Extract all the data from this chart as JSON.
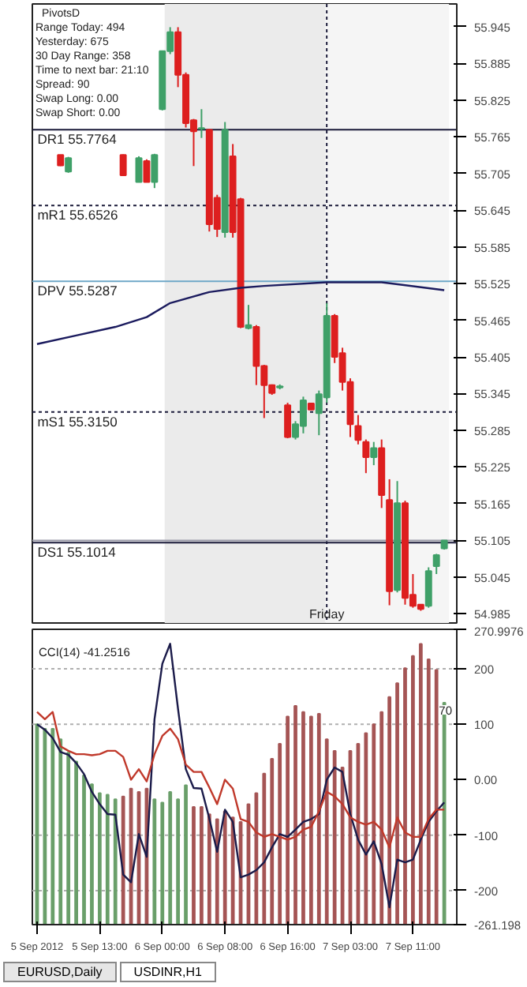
{
  "chart_data": [
    {
      "type": "candlestick",
      "categories": [
        null,
        null,
        null,
        null,
        null,
        null,
        null,
        null,
        null,
        null,
        null,
        null,
        null,
        null,
        null,
        null,
        null,
        null,
        null,
        null,
        null,
        null,
        null,
        null,
        null,
        null,
        null,
        null,
        null,
        null,
        null,
        null,
        null,
        null,
        null,
        null,
        null,
        null,
        null,
        null,
        null,
        null,
        null,
        null,
        null,
        null,
        null,
        null,
        null,
        null,
        null,
        null,
        null
      ],
      "ohlc": [
        null,
        null,
        null,
        [
          55.735,
          55.735,
          55.717,
          55.718
        ],
        [
          55.708,
          55.732,
          55.706,
          55.73
        ],
        null,
        null,
        null,
        null,
        null,
        null,
        [
          55.735,
          55.736,
          55.702,
          55.702
        ],
        null,
        [
          55.691,
          55.733,
          55.691,
          55.73
        ],
        [
          55.725,
          55.728,
          55.691,
          55.691
        ],
        [
          55.691,
          55.737,
          55.681,
          55.735
        ],
        [
          55.81,
          55.905,
          55.808,
          55.905
        ],
        [
          55.905,
          55.944,
          55.9,
          55.936
        ],
        [
          55.936,
          55.944,
          55.846,
          55.866
        ],
        [
          55.866,
          55.87,
          55.78,
          55.787
        ],
        [
          55.792,
          55.794,
          55.717,
          55.774
        ],
        [
          55.778,
          55.81,
          55.763,
          55.779
        ],
        [
          55.776,
          55.778,
          55.61,
          55.622
        ],
        [
          55.665,
          55.67,
          55.601,
          55.614
        ],
        [
          55.609,
          55.789,
          55.6,
          55.776
        ],
        [
          55.733,
          55.753,
          55.6,
          55.609
        ],
        [
          55.663,
          55.665,
          55.452,
          55.454
        ],
        [
          55.452,
          55.49,
          55.45,
          55.457
        ],
        [
          55.454,
          55.457,
          55.359,
          55.39
        ],
        [
          55.39,
          55.392,
          55.305,
          55.359
        ],
        [
          55.359,
          55.36,
          55.343,
          55.346
        ],
        [
          55.355,
          55.36,
          55.352,
          55.357
        ],
        [
          55.326,
          55.33,
          55.272,
          55.274
        ],
        [
          55.274,
          55.3,
          55.27,
          55.295
        ],
        [
          55.292,
          55.34,
          55.28,
          55.334
        ],
        [
          55.329,
          55.33,
          55.318,
          55.319
        ],
        [
          55.313,
          55.35,
          55.277,
          55.344
        ],
        [
          55.339,
          55.493,
          55.33,
          55.472
        ],
        [
          55.472,
          55.475,
          55.395,
          55.405
        ],
        [
          55.411,
          55.42,
          55.35,
          55.364
        ],
        [
          55.364,
          55.37,
          55.274,
          55.295
        ],
        [
          55.292,
          55.31,
          55.262,
          55.269
        ],
        [
          55.266,
          55.27,
          55.215,
          55.241
        ],
        [
          55.241,
          55.266,
          55.228,
          55.256
        ],
        [
          55.256,
          55.27,
          55.158,
          55.179
        ],
        [
          55.171,
          55.205,
          54.999,
          55.022
        ],
        [
          55.024,
          55.202,
          55.02,
          55.166
        ],
        [
          55.166,
          55.17,
          55.0,
          55.011
        ],
        [
          55.016,
          55.05,
          54.995,
          54.998
        ],
        [
          55.0,
          55.0,
          54.99,
          54.993
        ],
        [
          54.998,
          55.061,
          54.995,
          55.055
        ],
        [
          55.063,
          55.083,
          55.05,
          55.081
        ],
        [
          55.092,
          55.105,
          55.09,
          55.105
        ]
      ],
      "colors": [
        null,
        null,
        null,
        "#dd1f1f",
        "#3fa068",
        null,
        null,
        null,
        null,
        null,
        null,
        "#dd1f1f",
        null,
        "#3fa068",
        "#dd1f1f",
        "#3fa068",
        "#3fa068",
        "#3fa068",
        "#dd1f1f",
        "#dd1f1f",
        "#dd1f1f",
        "#3fa068",
        "#dd1f1f",
        "#dd1f1f",
        "#3fa068",
        "#dd1f1f",
        "#dd1f1f",
        "#3fa068",
        "#dd1f1f",
        "#dd1f1f",
        "#dd1f1f",
        "#3fa068",
        "#dd1f1f",
        "#3fa068",
        "#3fa068",
        "#dd1f1f",
        "#3fa068",
        "#3fa068",
        "#dd1f1f",
        "#dd1f1f",
        "#dd1f1f",
        "#dd1f1f",
        "#dd1f1f",
        "#3fa068",
        "#dd1f1f",
        "#dd1f1f",
        "#3fa068",
        "#dd1f1f",
        "#dd1f1f",
        "#dd1f1f",
        "#3fa068",
        "#3fa068",
        "#3fa068"
      ],
      "series": [
        {
          "type": "line",
          "color": "#1b1b5e",
          "values": [
            55.426,
            null,
            null,
            null,
            null,
            55.44,
            null,
            null,
            null,
            null,
            55.454,
            null,
            null,
            null,
            55.47,
            null,
            null,
            55.493,
            null,
            null,
            null,
            null,
            55.511,
            null,
            null,
            null,
            55.518,
            null,
            null,
            55.521,
            null,
            null,
            null,
            null,
            null,
            null,
            null,
            55.527,
            null,
            null,
            null,
            null,
            null,
            null,
            55.527,
            null,
            null,
            null,
            null,
            null,
            null,
            null,
            55.514
          ]
        }
      ],
      "ylim": [
        54.97,
        55.982
      ],
      "yticks": [
        54.985,
        55.045,
        {
          "value": 55.105,
          "label": "55.105"
        },
        55.165,
        55.225,
        55.285,
        55.345,
        55.405,
        55.465,
        55.525,
        55.585,
        55.645,
        55.705,
        55.765,
        55.825,
        55.885,
        55.945
      ],
      "tick_labels": "y",
      "ref_lines": [
        {
          "axis": "y",
          "value": 55.7764,
          "label": "DR1  55.7764",
          "color": "#1b1b3a",
          "line_style": "solid"
        },
        {
          "axis": "y",
          "value": 55.6526,
          "label": "mR1  55.6526",
          "color": "#1b1b3a",
          "line_style": "dotted"
        },
        {
          "axis": "y",
          "value": 55.5287,
          "label": "DPV  55.5287",
          "color": "#6fa8c8",
          "line_style": "solid"
        },
        {
          "axis": "y",
          "value": 55.315,
          "label": "mS1  55.3150",
          "color": "#1b1b3a",
          "line_style": "dotted"
        },
        {
          "axis": "y",
          "value": 55.1014,
          "label": "DS1  55.1014",
          "color": "#1b1b3a",
          "line_style": "solid"
        },
        {
          "axis": "y",
          "value": 55.105,
          "color": "#9a9aa8",
          "line_style": "solid"
        }
      ],
      "annotations": [
        "PivotsD",
        "Range Today: 494",
        "Yesterday: 675",
        "30 Day Range: 358",
        "Time to next bar: 21:10",
        "Spread: 90",
        "Swap Long: 0.00",
        "Swap Short: 0.00",
        "Friday"
      ]
    },
    {
      "type": "line",
      "title": "CCI(14) -41.2516",
      "categories": [
        "5 Sep 2012",
        null,
        null,
        null,
        null,
        null,
        null,
        null,
        "5 Sep 13:00",
        null,
        null,
        null,
        null,
        null,
        null,
        null,
        "6 Sep 00:00",
        null,
        null,
        null,
        null,
        null,
        null,
        null,
        "6 Sep 08:00",
        null,
        null,
        null,
        null,
        null,
        null,
        null,
        "6 Sep 16:00",
        null,
        null,
        null,
        null,
        null,
        null,
        null,
        "7 Sep 03:00",
        null,
        null,
        null,
        null,
        null,
        null,
        null,
        "7 Sep 11:00",
        null,
        null,
        null,
        null
      ],
      "series": [
        {
          "type": "bar",
          "base": [
            -261.198,
            -261.198,
            -261.198,
            -261.198,
            -261.198,
            -261.198,
            -261.198,
            -261.198,
            -261.198,
            -261.198,
            -261.198,
            -261.198,
            -261.198,
            -261.198,
            -261.198,
            -261.198,
            -261.198,
            -261.198,
            -261.198,
            -261.198,
            -261.198,
            -261.198,
            -261.198,
            -261.198,
            -261.198,
            -261.198,
            -261.198,
            -261.198,
            -261.198,
            -261.198,
            -261.198,
            -261.198,
            -261.198,
            -261.198,
            -261.198,
            -261.198,
            -261.198,
            -261.198,
            -261.198,
            -261.198,
            -261.198,
            -261.198,
            -261.198,
            -261.198,
            -261.198,
            -261.198,
            -261.198,
            -261.198,
            -261.198,
            -261.198,
            -261.198,
            -261.198,
            -261.198
          ],
          "values": [
            361,
            353,
            353,
            334,
            310,
            294,
            269,
            253,
            237,
            234,
            226,
            231,
            245,
            239,
            245,
            226,
            220,
            239,
            226,
            251,
            212,
            212,
            199,
            190,
            204,
            193,
            185,
            217,
            237,
            272,
            299,
            326,
            375,
            394,
            383,
            375,
            380,
            334,
            313,
            283,
            313,
            326,
            345,
            361,
            383,
            410,
            435,
            462,
            484,
            506,
            478,
            459,
            400
          ],
          "colors": [
            "#6a9f6a",
            "#6a9f6a",
            "#6a9f6a",
            "#6a9f6a",
            "#6a9f6a",
            "#6a9f6a",
            "#6a9f6a",
            "#6a9f6a",
            "#6a9f6a",
            "#6a9f6a",
            "#6a9f6a",
            "#a55555",
            "#a55555",
            "#a55555",
            "#a55555",
            "#6a9f6a",
            "#6a9f6a",
            "#6a9f6a",
            "#6a9f6a",
            "#6a9f6a",
            "#a55555",
            "#a55555",
            "#a55555",
            "#a55555",
            "#a55555",
            "#a55555",
            "#a55555",
            "#a55555",
            "#a55555",
            "#a55555",
            "#a55555",
            "#a55555",
            "#a55555",
            "#a55555",
            "#a55555",
            "#a55555",
            "#a55555",
            "#a55555",
            "#a55555",
            "#a55555",
            "#a55555",
            "#a55555",
            "#a55555",
            "#a55555",
            "#a55555",
            "#a55555",
            "#a55555",
            "#a55555",
            "#a55555",
            "#a55555",
            "#a55555",
            "#a55555",
            "#6a9f6a"
          ]
        },
        {
          "type": "line",
          "color": "#1b1b4a",
          "values": [
            100,
            90,
            75,
            50,
            45,
            30,
            10,
            -22,
            -44,
            -62,
            -63,
            -171,
            -185,
            -98,
            -139,
            109,
            209,
            245,
            128,
            19,
            -15,
            -16,
            -70,
            -130,
            -54,
            -76,
            -176,
            -171,
            -163,
            -149,
            -122,
            -98,
            -103,
            -90,
            -76,
            -71,
            -62,
            0,
            22,
            14,
            -62,
            -108,
            -135,
            -111,
            -152,
            -230,
            -144,
            -149,
            -144,
            -108,
            -76,
            -57,
            -41
          ]
        },
        {
          "type": "line",
          "color": "#c0392b",
          "values": [
            122,
            109,
            122,
            60,
            52,
            46,
            46,
            44,
            46,
            52,
            52,
            41,
            0,
            19,
            -3,
            46,
            79,
            92,
            73,
            27,
            14,
            14,
            -14,
            -44,
            0,
            -16,
            -71,
            -76,
            -95,
            -103,
            -98,
            -103,
            -108,
            -103,
            -90,
            -85,
            -57,
            -22,
            -30,
            -44,
            -68,
            -76,
            -81,
            -76,
            -90,
            -122,
            -68,
            -95,
            -103,
            -103,
            -71,
            -54,
            -54
          ]
        }
      ],
      "ylim": [
        -261.198,
        270.9976
      ],
      "yticks": [
        -261.198,
        -200,
        -100,
        {
          "value": 0,
          "label": "0.00"
        },
        100,
        200,
        270.9976
      ],
      "ref_lines": [
        {
          "axis": "y",
          "value": 200,
          "color": "#b0b0b0",
          "line_style": "dotted"
        },
        {
          "axis": "y",
          "value": 100,
          "color": "#b0b0b0",
          "line_style": "dotted"
        },
        {
          "axis": "y",
          "value": -100,
          "color": "#b0b0b0",
          "line_style": "dotted"
        },
        {
          "axis": "y",
          "value": -200,
          "color": "#b0b0b0",
          "line_style": "dotted"
        }
      ],
      "annotations": [
        "70",
        "EURUSD,Daily",
        "USDINR,H1"
      ]
    }
  ]
}
